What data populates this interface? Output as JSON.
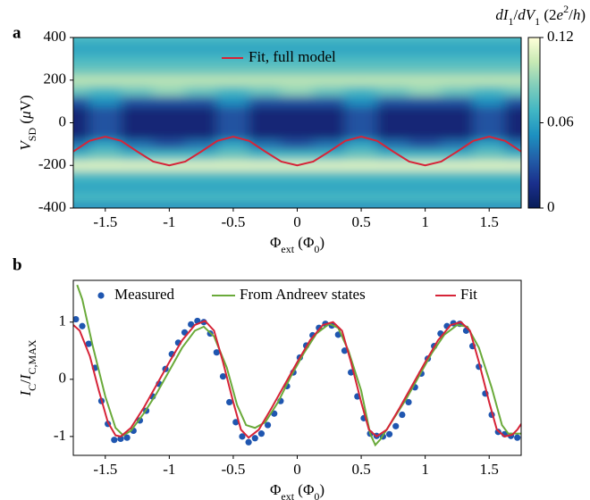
{
  "chart_data": [
    {
      "type": "heatmap",
      "panel": "a",
      "xlabel": [
        {
          "text": "Φ"
        },
        {
          "text": "ext",
          "sub": true
        },
        {
          "text": " (Φ"
        },
        {
          "text": "0",
          "sub": true
        },
        {
          "text": ")"
        }
      ],
      "ylabel": [
        {
          "text": "V",
          "italic": true
        },
        {
          "text": "SD",
          "sub": true
        },
        {
          "text": " ("
        },
        {
          "text": "μ",
          "italic": true
        },
        {
          "text": "V)"
        }
      ],
      "zlabel": [
        {
          "text": "dI",
          "italic": true
        },
        {
          "text": "1",
          "sub": true
        },
        {
          "text": "/"
        },
        {
          "text": "dV",
          "italic": true
        },
        {
          "text": "1",
          "sub": true
        },
        {
          "text": " (2"
        },
        {
          "text": "e",
          "italic": true
        },
        {
          "text": "2",
          "sup": true
        },
        {
          "text": "/"
        },
        {
          "text": "h",
          "italic": true
        },
        {
          "text": ")"
        }
      ],
      "xlim": [
        -1.75,
        1.75
      ],
      "xticks": [
        -1.5,
        -1,
        -0.5,
        0,
        0.5,
        1,
        1.5
      ],
      "ylim": [
        -400,
        400
      ],
      "yticks": [
        -400,
        -200,
        0,
        200,
        400
      ],
      "zlim": [
        0,
        0.12
      ],
      "zticks": [
        0,
        0.06,
        0.12
      ],
      "colormap": [
        "#081d58",
        "#1a2f8c",
        "#225ea8",
        "#1d91c0",
        "#41b6c4",
        "#7fcdbb",
        "#c7e9b4",
        "#ffffd9"
      ],
      "x": [
        -1.75,
        -1.5,
        -1.25,
        -1,
        -0.75,
        -0.5,
        -0.25,
        0,
        0.25,
        0.5,
        0.75,
        1,
        1.25,
        1.5,
        1.75
      ],
      "y": [
        -400,
        -350,
        -300,
        -250,
        -200,
        -150,
        -100,
        -50,
        0,
        50,
        100,
        150,
        200,
        250,
        300,
        350,
        400
      ],
      "z": [
        [
          0.05,
          0.05,
          0.05,
          0.05,
          0.05,
          0.05,
          0.05,
          0.05,
          0.05,
          0.05,
          0.05,
          0.05,
          0.05,
          0.05,
          0.05
        ],
        [
          0.07,
          0.07,
          0.07,
          0.07,
          0.07,
          0.07,
          0.07,
          0.07,
          0.07,
          0.07,
          0.07,
          0.07,
          0.07,
          0.07,
          0.07
        ],
        [
          0.06,
          0.06,
          0.06,
          0.06,
          0.06,
          0.06,
          0.06,
          0.06,
          0.06,
          0.06,
          0.06,
          0.06,
          0.06,
          0.06,
          0.06
        ],
        [
          0.07,
          0.07,
          0.07,
          0.07,
          0.07,
          0.07,
          0.07,
          0.07,
          0.07,
          0.07,
          0.07,
          0.07,
          0.07,
          0.07,
          0.07
        ],
        [
          0.11,
          0.11,
          0.11,
          0.11,
          0.11,
          0.11,
          0.11,
          0.11,
          0.11,
          0.11,
          0.11,
          0.11,
          0.11,
          0.11,
          0.11
        ],
        [
          0.07,
          0.08,
          0.07,
          0.07,
          0.07,
          0.08,
          0.07,
          0.07,
          0.07,
          0.08,
          0.07,
          0.07,
          0.07,
          0.08,
          0.07
        ],
        [
          0.04,
          0.06,
          0.04,
          0.03,
          0.04,
          0.06,
          0.04,
          0.03,
          0.04,
          0.06,
          0.04,
          0.03,
          0.04,
          0.06,
          0.04
        ],
        [
          0.01,
          0.03,
          0.01,
          0.01,
          0.01,
          0.03,
          0.01,
          0.01,
          0.01,
          0.03,
          0.01,
          0.01,
          0.01,
          0.03,
          0.01
        ],
        [
          0.01,
          0.03,
          0.01,
          0.01,
          0.01,
          0.03,
          0.01,
          0.01,
          0.01,
          0.03,
          0.01,
          0.01,
          0.01,
          0.03,
          0.01
        ],
        [
          0.01,
          0.03,
          0.01,
          0.01,
          0.01,
          0.03,
          0.01,
          0.01,
          0.01,
          0.03,
          0.01,
          0.01,
          0.01,
          0.03,
          0.01
        ],
        [
          0.03,
          0.05,
          0.03,
          0.03,
          0.03,
          0.05,
          0.03,
          0.03,
          0.03,
          0.05,
          0.03,
          0.03,
          0.03,
          0.05,
          0.03
        ],
        [
          0.08,
          0.07,
          0.08,
          0.09,
          0.08,
          0.07,
          0.08,
          0.09,
          0.08,
          0.07,
          0.08,
          0.09,
          0.08,
          0.07,
          0.08
        ],
        [
          0.1,
          0.1,
          0.1,
          0.1,
          0.1,
          0.1,
          0.1,
          0.1,
          0.1,
          0.1,
          0.1,
          0.1,
          0.1,
          0.1,
          0.1
        ],
        [
          0.08,
          0.08,
          0.08,
          0.08,
          0.08,
          0.08,
          0.08,
          0.08,
          0.08,
          0.08,
          0.08,
          0.08,
          0.08,
          0.08,
          0.08
        ],
        [
          0.07,
          0.07,
          0.07,
          0.07,
          0.07,
          0.07,
          0.07,
          0.07,
          0.07,
          0.07,
          0.07,
          0.07,
          0.07,
          0.07,
          0.07
        ],
        [
          0.06,
          0.06,
          0.06,
          0.06,
          0.06,
          0.06,
          0.06,
          0.06,
          0.06,
          0.06,
          0.06,
          0.06,
          0.06,
          0.06,
          0.06
        ],
        [
          0.07,
          0.07,
          0.07,
          0.07,
          0.07,
          0.07,
          0.07,
          0.07,
          0.07,
          0.07,
          0.07,
          0.07,
          0.07,
          0.07,
          0.07
        ]
      ],
      "series": [
        {
          "name": "Fit, full model",
          "color": "#d62438",
          "x": [
            -1.75,
            -1.625,
            -1.5,
            -1.375,
            -1.25,
            -1.125,
            -1,
            -0.875,
            -0.75,
            -0.625,
            -0.5,
            -0.375,
            -0.25,
            -0.125,
            0,
            0.125,
            0.25,
            0.375,
            0.5,
            0.625,
            0.75,
            0.875,
            1,
            1.125,
            1.25,
            1.375,
            1.5,
            1.625,
            1.75
          ],
          "values": [
            -135,
            -85,
            -65,
            -85,
            -135,
            -182,
            -200,
            -182,
            -135,
            -85,
            -65,
            -85,
            -135,
            -182,
            -200,
            -182,
            -135,
            -85,
            -65,
            -85,
            -135,
            -182,
            -200,
            -182,
            -135,
            -85,
            -65,
            -85,
            -135
          ]
        }
      ]
    },
    {
      "type": "line",
      "panel": "b",
      "xlabel": [
        {
          "text": "Φ"
        },
        {
          "text": "ext",
          "sub": true
        },
        {
          "text": " (Φ"
        },
        {
          "text": "0",
          "sub": true
        },
        {
          "text": ")"
        }
      ],
      "ylabel": [
        {
          "text": "I",
          "italic": true
        },
        {
          "text": "C",
          "sub": true
        },
        {
          "text": "/"
        },
        {
          "text": "I",
          "italic": true
        },
        {
          "text": "C,MAX",
          "sub": true
        }
      ],
      "xlim": [
        -1.75,
        1.75
      ],
      "xticks": [
        -1.5,
        -1,
        -0.5,
        0,
        0.5,
        1,
        1.5
      ],
      "ylim": [
        -1.33,
        1.73
      ],
      "yticks": [
        -1,
        0,
        1
      ],
      "series": [
        {
          "name": "Measured",
          "color": "#1f56b0",
          "type": "scatter",
          "x": [
            -1.73,
            -1.68,
            -1.63,
            -1.58,
            -1.53,
            -1.48,
            -1.43,
            -1.38,
            -1.33,
            -1.28,
            -1.23,
            -1.18,
            -1.13,
            -1.08,
            -1.03,
            -0.98,
            -0.93,
            -0.88,
            -0.83,
            -0.78,
            -0.73,
            -0.68,
            -0.63,
            -0.58,
            -0.53,
            -0.48,
            -0.43,
            -0.38,
            -0.33,
            -0.28,
            -0.23,
            -0.18,
            -0.13,
            -0.08,
            -0.03,
            0.02,
            0.07,
            0.12,
            0.17,
            0.22,
            0.27,
            0.32,
            0.37,
            0.42,
            0.47,
            0.52,
            0.57,
            0.62,
            0.67,
            0.72,
            0.77,
            0.82,
            0.87,
            0.92,
            0.97,
            1.02,
            1.07,
            1.12,
            1.17,
            1.22,
            1.27,
            1.32,
            1.37,
            1.42,
            1.47,
            1.52,
            1.57,
            1.62,
            1.67,
            1.72
          ],
          "values": [
            1.05,
            0.93,
            0.62,
            0.2,
            -0.38,
            -0.78,
            -1.06,
            -1.04,
            -1.02,
            -0.9,
            -0.72,
            -0.55,
            -0.3,
            -0.08,
            0.18,
            0.44,
            0.64,
            0.82,
            0.96,
            1.02,
            1.0,
            0.8,
            0.47,
            0.05,
            -0.4,
            -0.75,
            -1.0,
            -1.1,
            -1.03,
            -0.95,
            -0.8,
            -0.6,
            -0.38,
            -0.12,
            0.12,
            0.38,
            0.59,
            0.77,
            0.9,
            0.97,
            0.94,
            0.78,
            0.5,
            0.12,
            -0.3,
            -0.68,
            -0.95,
            -0.99,
            -1.0,
            -0.96,
            -0.82,
            -0.62,
            -0.4,
            -0.14,
            0.1,
            0.36,
            0.58,
            0.8,
            0.93,
            0.98,
            0.97,
            0.85,
            0.58,
            0.22,
            -0.25,
            -0.62,
            -0.92,
            -0.96,
            -0.99,
            -1.02
          ]
        },
        {
          "name": "From Andreev states",
          "color": "#6aaa3a",
          "x": [
            -1.72,
            -1.68,
            -1.6,
            -1.5,
            -1.42,
            -1.36,
            -1.3,
            -1.2,
            -1.1,
            -1.0,
            -0.9,
            -0.8,
            -0.73,
            -0.65,
            -0.55,
            -0.47,
            -0.4,
            -0.33,
            -0.25,
            -0.15,
            -0.05,
            0.05,
            0.15,
            0.25,
            0.32,
            0.4,
            0.5,
            0.57,
            0.61,
            0.65,
            0.75,
            0.85,
            0.95,
            1.05,
            1.15,
            1.25,
            1.33,
            1.42,
            1.52,
            1.6,
            1.65,
            1.7,
            1.75
          ],
          "values": [
            1.65,
            1.4,
            0.6,
            -0.3,
            -0.85,
            -0.98,
            -0.9,
            -0.6,
            -0.25,
            0.15,
            0.55,
            0.85,
            0.92,
            0.75,
            0.2,
            -0.45,
            -0.8,
            -0.85,
            -0.75,
            -0.4,
            0.05,
            0.45,
            0.8,
            0.97,
            0.9,
            0.5,
            -0.2,
            -0.95,
            -1.15,
            -1.05,
            -0.7,
            -0.35,
            0.05,
            0.45,
            0.78,
            0.95,
            0.92,
            0.55,
            -0.15,
            -0.8,
            -0.95,
            -0.95,
            -0.95
          ]
        },
        {
          "name": "Fit",
          "color": "#d62438",
          "x": [
            -1.75,
            -1.7,
            -1.62,
            -1.55,
            -1.48,
            -1.42,
            -1.38,
            -1.3,
            -1.2,
            -1.1,
            -1.0,
            -0.9,
            -0.8,
            -0.72,
            -0.65,
            -0.58,
            -0.5,
            -0.44,
            -0.38,
            -0.3,
            -0.2,
            -0.1,
            0,
            0.1,
            0.2,
            0.28,
            0.35,
            0.42,
            0.5,
            0.56,
            0.62,
            0.7,
            0.8,
            0.9,
            1.0,
            1.1,
            1.2,
            1.28,
            1.35,
            1.42,
            1.5,
            1.56,
            1.62,
            1.68,
            1.72,
            1.75
          ],
          "values": [
            0.95,
            0.85,
            0.4,
            -0.2,
            -0.75,
            -0.98,
            -1.0,
            -0.85,
            -0.5,
            -0.1,
            0.3,
            0.68,
            0.95,
            1.02,
            0.85,
            0.3,
            -0.4,
            -0.88,
            -1.02,
            -0.88,
            -0.5,
            -0.1,
            0.3,
            0.68,
            0.95,
            1.0,
            0.85,
            0.3,
            -0.4,
            -0.88,
            -1.0,
            -0.88,
            -0.5,
            -0.1,
            0.3,
            0.68,
            0.95,
            1.0,
            0.85,
            0.3,
            -0.4,
            -0.88,
            -1.0,
            -0.97,
            -0.88,
            -0.78
          ]
        }
      ]
    }
  ]
}
